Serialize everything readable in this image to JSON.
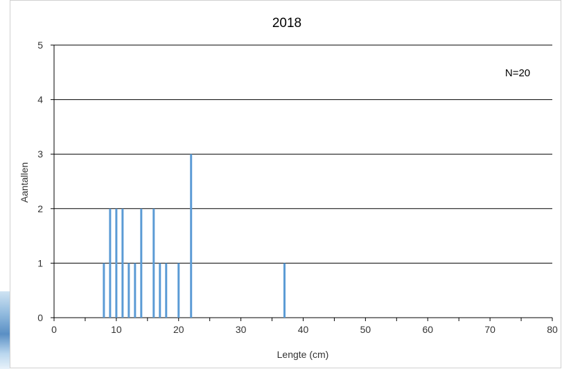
{
  "chart_data": {
    "type": "bar",
    "title": "2018",
    "xlabel": "Lengte (cm)",
    "ylabel": "Aantallen",
    "annotation": "N=20",
    "xlim": [
      0,
      80
    ],
    "ylim": [
      0,
      5
    ],
    "x_ticks": [
      0,
      10,
      20,
      30,
      40,
      50,
      60,
      70,
      80
    ],
    "y_ticks": [
      0,
      1,
      2,
      3,
      4,
      5
    ],
    "grid": "horizontal",
    "bar_color": "#5b9bd5",
    "x": [
      8,
      9,
      10,
      11,
      12,
      13,
      14,
      16,
      17,
      18,
      20,
      22,
      37
    ],
    "values": [
      1,
      2,
      2,
      2,
      1,
      1,
      2,
      2,
      1,
      1,
      1,
      3,
      1
    ]
  }
}
